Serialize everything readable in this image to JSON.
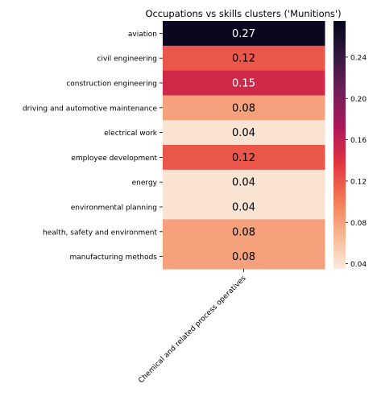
{
  "chart_data": {
    "type": "heatmap",
    "title": "Occupations vs skills clusters ('Munitions')",
    "xlabel": "",
    "ylabel": "",
    "x_categories": [
      "Chemical and related process operatives"
    ],
    "y_categories": [
      "aviation",
      "civil engineering",
      "construction engineering",
      "driving and automotive maintenance",
      "electrical work",
      "employee development",
      "energy",
      "environmental planning",
      "health, safety and environment",
      "manufacturing methods"
    ],
    "values": [
      [
        0.27
      ],
      [
        0.12
      ],
      [
        0.15
      ],
      [
        0.08
      ],
      [
        0.04
      ],
      [
        0.12
      ],
      [
        0.04
      ],
      [
        0.04
      ],
      [
        0.08
      ],
      [
        0.08
      ]
    ],
    "value_labels": [
      "0.27",
      "0.12",
      "0.15",
      "0.08",
      "0.04",
      "0.12",
      "0.04",
      "0.04",
      "0.08",
      "0.08"
    ],
    "colorbar": {
      "ticks": [
        0.04,
        0.08,
        0.12,
        0.16,
        0.2,
        0.24
      ],
      "tick_labels": [
        "0.04",
        "0.08",
        "0.12",
        "0.16",
        "0.20",
        "0.24"
      ],
      "range": [
        0.035,
        0.275
      ]
    },
    "colormap": "rocket_r",
    "colormap_stops": [
      "#faebdd",
      "#f6b48f",
      "#f37651",
      "#e13342",
      "#ad1759",
      "#701f57",
      "#35193e",
      "#03051a"
    ],
    "light_text_color": "#ffffff",
    "dark_text_color": "#000000"
  }
}
